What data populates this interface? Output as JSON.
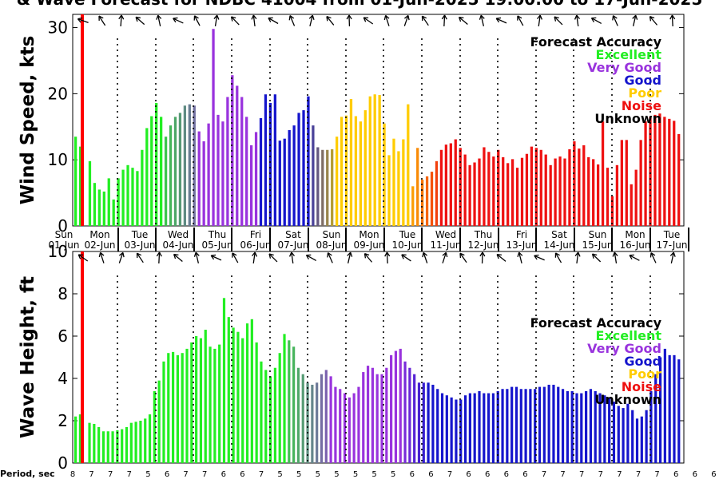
{
  "title": "& Wave Forecast for NDBC 41004 from 01-Jun-2025 19:00:00 to 17-Jun-2025",
  "period_label": "Period, sec",
  "colors": {
    "Excellent": "#22ee22",
    "Very Good": "#9933dd",
    "Good": "#1515cc",
    "Poor": "#ffcc00",
    "Noise": "#ee1111",
    "Unknown": "#000000",
    "now_line": "#ff0000"
  },
  "days": [
    {
      "dow": "Sun",
      "date": "01-Jun"
    },
    {
      "dow": "Mon",
      "date": "02-Jun"
    },
    {
      "dow": "Tue",
      "date": "03-Jun"
    },
    {
      "dow": "Wed",
      "date": "04-Jun"
    },
    {
      "dow": "Thu",
      "date": "05-Jun"
    },
    {
      "dow": "Fri",
      "date": "06-Jun"
    },
    {
      "dow": "Sat",
      "date": "07-Jun"
    },
    {
      "dow": "Sun",
      "date": "08-Jun"
    },
    {
      "dow": "Mon",
      "date": "09-Jun"
    },
    {
      "dow": "Tue",
      "date": "10-Jun"
    },
    {
      "dow": "Wed",
      "date": "11-Jun"
    },
    {
      "dow": "Thu",
      "date": "12-Jun"
    },
    {
      "dow": "Fri",
      "date": "13-Jun"
    },
    {
      "dow": "Sat",
      "date": "14-Jun"
    },
    {
      "dow": "Sun",
      "date": "15-Jun"
    },
    {
      "dow": "Mon",
      "date": "16-Jun"
    },
    {
      "dow": "Tue",
      "date": "17-Jun"
    }
  ],
  "periods": [
    "8",
    "7",
    "7",
    "7",
    "5",
    "6",
    "7",
    "7",
    "6",
    "6",
    "7",
    "5",
    "5",
    "5",
    "5",
    "5",
    "5",
    "5",
    "6",
    "6",
    "7",
    "6",
    "6",
    "6",
    "6",
    "7",
    "7",
    "7",
    "7",
    "7",
    "7",
    "7",
    "6",
    "6",
    "6",
    "7"
  ],
  "chart_data": [
    {
      "type": "bar",
      "ylabel": "Wind Speed, kts",
      "ylim": [
        0,
        32
      ],
      "yticks": [
        0,
        10,
        20,
        30
      ],
      "legend_title": "Forecast Accuracy",
      "legend": [
        "Excellent",
        "Very Good",
        "Good",
        "Poor",
        "Noise",
        "Unknown"
      ],
      "legend_position": "top-right",
      "values": [
        13.5,
        12,
        0,
        9.8,
        6.5,
        5.5,
        5.2,
        7.2,
        4,
        7.2,
        8.5,
        9.2,
        8.8,
        8.3,
        11.5,
        14.8,
        16.6,
        18.6,
        16.5,
        13.5,
        15.2,
        16.5,
        17.1,
        18.2,
        18.4,
        18.2,
        14.3,
        12.8,
        15.5,
        29.8,
        16.8,
        15.8,
        19.5,
        22.8,
        21.2,
        19.5,
        16.5,
        12.2,
        14.2,
        16.3,
        19.9,
        18.6,
        19.9,
        12.9,
        13.2,
        14.5,
        15.2,
        17.1,
        17.5,
        19.6,
        15.2,
        11.9,
        11.5,
        11.5,
        11.6,
        13.5,
        16.5,
        16.7,
        19.2,
        16.6,
        15.8,
        17.5,
        19.6,
        19.9,
        19.8,
        15.5,
        10.7,
        13.2,
        11.3,
        13.1,
        18.4,
        6,
        11.8,
        7,
        7.5,
        8.2,
        9.8,
        11.5,
        12.3,
        12.5,
        13.1,
        11.8,
        10.8,
        9.2,
        9.6,
        10.2,
        11.9,
        11.2,
        10.5,
        11.5,
        10.4,
        9.5,
        10.1,
        8.8,
        10.3,
        10.9,
        12,
        11.8,
        11.5,
        10.8,
        9.2,
        10.2,
        10.5,
        10.2,
        11.6,
        12.8,
        11.7,
        12.2,
        10.4,
        10.1,
        9.3,
        15.8,
        8.8,
        4.5,
        9.2,
        13,
        13,
        6.3,
        8.5,
        13,
        15.8,
        16.5,
        16.8,
        17,
        16.5,
        16.2,
        15.9,
        13.9
      ],
      "color_groups": [
        [
          0,
          18,
          "Excellent"
        ],
        [
          19,
          25,
          "blend-gv"
        ],
        [
          26,
          38,
          "Very Good"
        ],
        [
          39,
          49,
          "Good"
        ],
        [
          50,
          54,
          "blend-bp"
        ],
        [
          55,
          70,
          "Poor"
        ],
        [
          71,
          76,
          "blend-po"
        ],
        [
          77,
          132,
          "Noise"
        ]
      ]
    },
    {
      "type": "bar",
      "ylabel": "Wave Height, ft",
      "ylim": [
        0,
        10
      ],
      "yticks": [
        0,
        2,
        4,
        6,
        8,
        10
      ],
      "legend_title": "Forecast Accuracy",
      "legend": [
        "Excellent",
        "Very Good",
        "Good",
        "Poor",
        "Noise",
        "Unknown"
      ],
      "legend_position": "right",
      "values": [
        2.2,
        2.3,
        0,
        1.9,
        1.85,
        1.7,
        1.5,
        1.5,
        1.5,
        1.55,
        1.6,
        1.7,
        1.9,
        1.95,
        2,
        2.1,
        2.3,
        3.4,
        3.9,
        4.8,
        5.2,
        5.25,
        5.1,
        5.2,
        5.4,
        5.7,
        6,
        5.9,
        6.3,
        5.5,
        5.4,
        5.6,
        7.8,
        6.9,
        6.4,
        6.2,
        5.9,
        6.6,
        6.8,
        5.7,
        4.8,
        4.4,
        4.1,
        4.5,
        5.2,
        6.1,
        5.8,
        5.5,
        4.5,
        4.2,
        3.8,
        3.7,
        3.8,
        4.2,
        4.4,
        4.1,
        3.6,
        3.5,
        3.3,
        3.1,
        3.3,
        3.6,
        4.3,
        4.6,
        4.5,
        4.2,
        4.2,
        4.5,
        5.1,
        5.3,
        5.4,
        4.8,
        4.5,
        4.2,
        3.8,
        3.8,
        3.8,
        3.7,
        3.5,
        3.3,
        3.2,
        3.1,
        3,
        3,
        3.2,
        3.3,
        3.3,
        3.4,
        3.3,
        3.3,
        3.3,
        3.4,
        3.5,
        3.5,
        3.6,
        3.6,
        3.5,
        3.5,
        3.5,
        3.5,
        3.6,
        3.6,
        3.7,
        3.7,
        3.6,
        3.5,
        3.4,
        3.4,
        3.3,
        3.3,
        3.4,
        3.5,
        3.4,
        3.3,
        3.2,
        3.1,
        2.9,
        2.7,
        2.6,
        2.8,
        2.5,
        2.1,
        2.2,
        2.5,
        3.4,
        4.2,
        5,
        5.4,
        5.1,
        5.1,
        4.9
      ],
      "color_groups": [
        [
          0,
          45,
          "Excellent"
        ],
        [
          46,
          54,
          "blend-gp"
        ],
        [
          55,
          70,
          "Very Good"
        ],
        [
          71,
          75,
          "blend-pb"
        ],
        [
          76,
          132,
          "Good"
        ]
      ]
    }
  ]
}
